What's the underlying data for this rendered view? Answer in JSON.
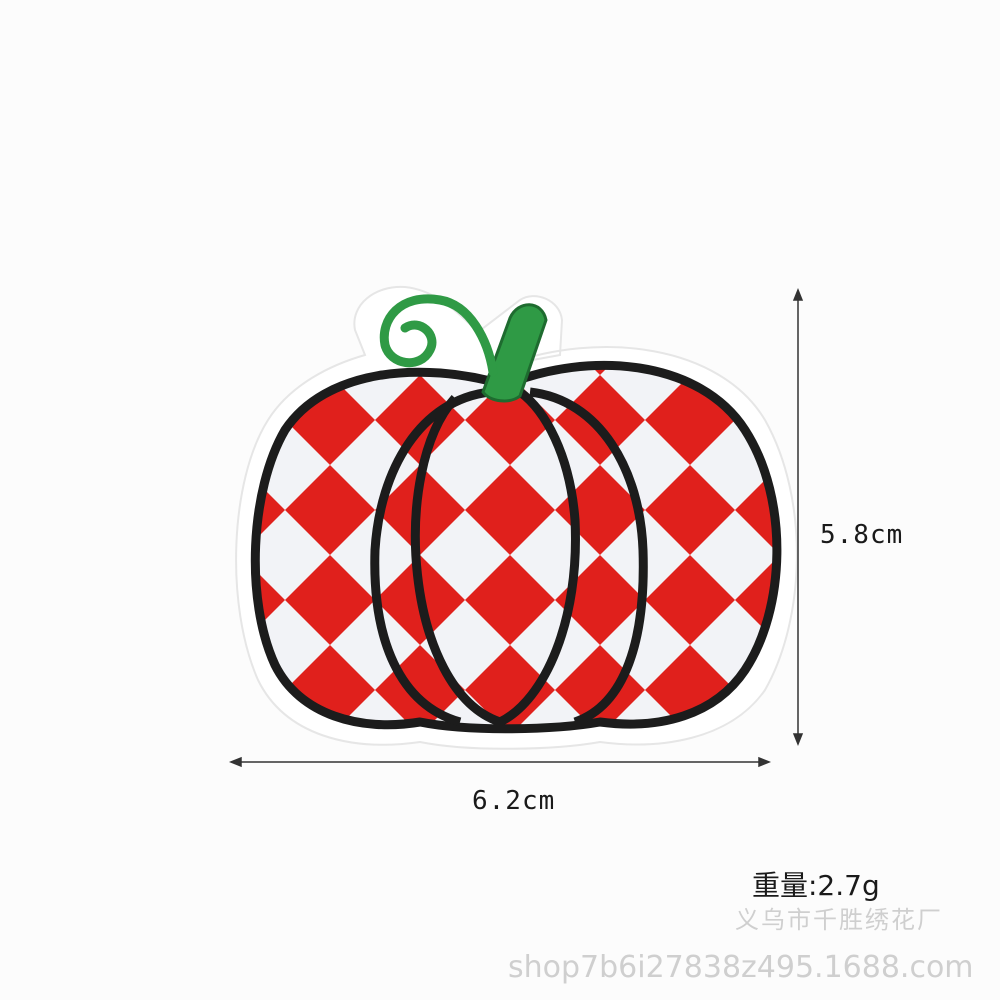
{
  "dimensions": {
    "height_label": "5.8cm",
    "width_label": "6.2cm"
  },
  "weight_label": "重量:2.7g",
  "watermark": {
    "line1": "义乌市千胜绣花厂",
    "line2": "shop7b6i27838z495.1688.com"
  },
  "colors": {
    "background": "#fcfcfc",
    "felt": "#ffffff",
    "red": "#e0201c",
    "white_thread": "#f2f3f7",
    "outline": "#1c1c1c",
    "stem": "#2f9a45"
  }
}
